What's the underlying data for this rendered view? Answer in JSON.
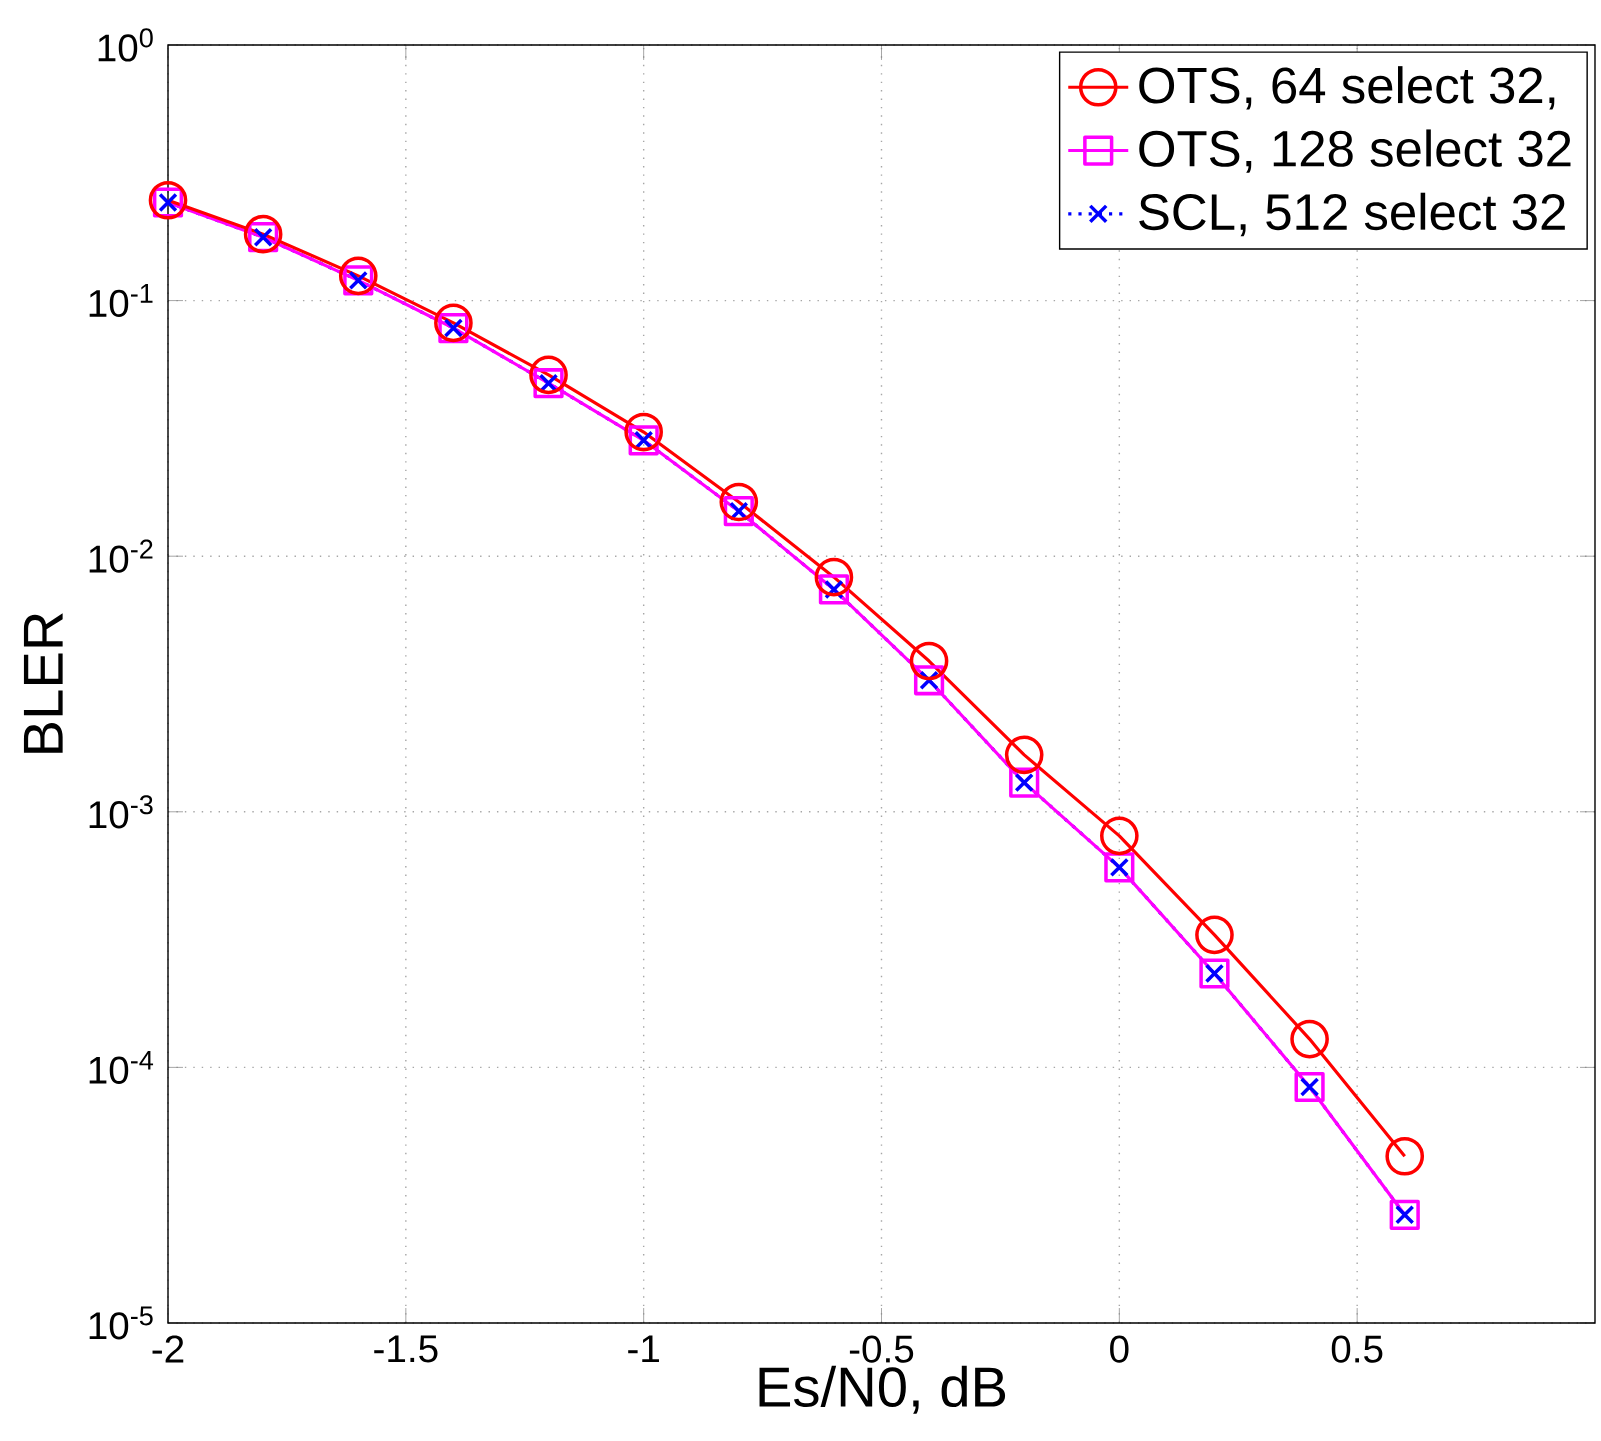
{
  "chart_data": {
    "type": "line",
    "xlabel": "Es/N0, dB",
    "ylabel": "BLER",
    "log": true,
    "grid": true,
    "legend": "top right",
    "x": [
      -2,
      -1.8,
      -1.6,
      -1.4,
      -1.2,
      -1.0,
      -0.8,
      -0.6,
      -0.4,
      -0.2,
      0,
      0.2,
      0.4,
      0.6
    ],
    "xlim": [
      -2,
      1
    ],
    "xticks": [
      -2,
      -1.5,
      -1,
      -0.5,
      0,
      0.5
    ],
    "ylim": [
      1e-05,
      1
    ],
    "yticks": [
      {
        "value": 1e-05,
        "label": "10$^{-5}$"
      },
      {
        "value": 0.0001,
        "label": "10$^{-4}$"
      },
      {
        "value": 0.001,
        "label": "10$^{-3}$"
      },
      {
        "value": 0.01,
        "label": "10$^{-2}$"
      },
      {
        "value": 0.1,
        "label": "10$^{-1}$"
      },
      {
        "value": 1,
        "label": "10$^{0}$"
      }
    ],
    "series": [
      {
        "name": "OTS, 64 select 32,",
        "color": "#ff0000",
        "marker": "circle",
        "line_style": "solid",
        "values": [
          0.247,
          0.182,
          0.125,
          0.0818,
          0.0512,
          0.0306,
          0.0163,
          0.00828,
          0.00389,
          0.00167,
          0.000805,
          0.00033,
          0.000129,
          4.49e-05
        ]
      },
      {
        "name": "OTS, 128 select 32",
        "color": "#ff00ff",
        "marker": "square",
        "line_style": "solid",
        "values": [
          0.242,
          0.177,
          0.12,
          0.0781,
          0.0475,
          0.0284,
          0.015,
          0.00741,
          0.00327,
          0.0013,
          0.000606,
          0.000233,
          8.38e-05,
          2.65e-05
        ]
      },
      {
        "name": "SCL, 512 select 32",
        "color": "#0000ff",
        "marker": "cross",
        "line_style": "dotted",
        "values": [
          0.242,
          0.177,
          0.12,
          0.0781,
          0.0475,
          0.0284,
          0.015,
          0.00741,
          0.00327,
          0.0013,
          0.000606,
          0.000233,
          8.38e-05,
          2.65e-05
        ]
      }
    ]
  }
}
